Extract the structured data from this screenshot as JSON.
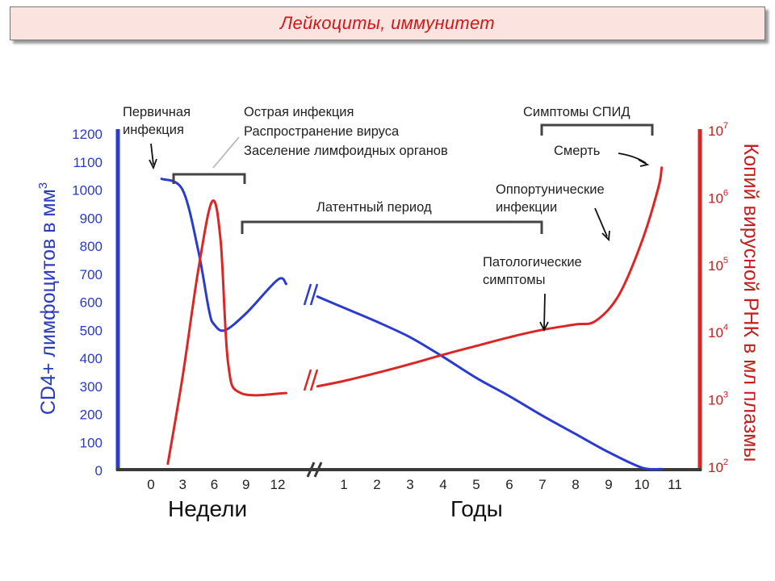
{
  "header": {
    "title": "Лейкоциты, иммунитет"
  },
  "chart_data": {
    "type": "line",
    "ylabel_left": "CD4+ лимфоцитов в мм",
    "ylabel_left_sup": "3",
    "ylabel_right": "Копий вирусной РНК в мл плазмы",
    "ylim_left": [
      0,
      1200
    ],
    "left_ticks": [
      "0",
      "100",
      "200",
      "300",
      "400",
      "500",
      "600",
      "700",
      "800",
      "900",
      "1000",
      "1100",
      "1200"
    ],
    "right_ticks": [
      {
        "base": "10",
        "exp": "2"
      },
      {
        "base": "10",
        "exp": "3"
      },
      {
        "base": "10",
        "exp": "4"
      },
      {
        "base": "10",
        "exp": "5"
      },
      {
        "base": "10",
        "exp": "6"
      },
      {
        "base": "10",
        "exp": "7"
      }
    ],
    "ylim_right_log10": [
      2,
      7
    ],
    "x_weeks_ticks": [
      "0",
      "3",
      "6",
      "9",
      "12"
    ],
    "x_years_ticks": [
      "1",
      "2",
      "3",
      "4",
      "5",
      "6",
      "7",
      "8",
      "9",
      "10",
      "11"
    ],
    "x_weeks_label": "Недели",
    "x_years_label": "Годы",
    "series": [
      {
        "color": "#2a3bd0",
        "axis": "left",
        "weeks": [
          [
            1,
            1040
          ],
          [
            3,
            1000
          ],
          [
            4.5,
            780
          ],
          [
            5.5,
            570
          ],
          [
            6,
            520
          ],
          [
            7,
            500
          ],
          [
            9,
            560
          ],
          [
            12,
            680
          ],
          [
            12.8,
            665
          ]
        ],
        "years": [
          [
            0.2,
            620
          ],
          [
            1,
            580
          ],
          [
            2,
            530
          ],
          [
            3,
            475
          ],
          [
            4,
            405
          ],
          [
            5,
            330
          ],
          [
            6,
            265
          ],
          [
            7,
            195
          ],
          [
            8,
            130
          ],
          [
            9,
            65
          ],
          [
            10,
            10
          ],
          [
            10.6,
            5
          ]
        ]
      },
      {
        "color": "#dc2626",
        "axis": "right",
        "weeks": [
          [
            1.6,
            2.1
          ],
          [
            3,
            3.4
          ],
          [
            4.5,
            5.0
          ],
          [
            5.8,
            6.0
          ],
          [
            6.6,
            5.4
          ],
          [
            7.3,
            3.6
          ],
          [
            8.5,
            3.15
          ],
          [
            12.8,
            3.15
          ]
        ],
        "years": [
          [
            0.2,
            3.25
          ],
          [
            1,
            3.33
          ],
          [
            2,
            3.45
          ],
          [
            3,
            3.58
          ],
          [
            4,
            3.72
          ],
          [
            5,
            3.85
          ],
          [
            6,
            3.98
          ],
          [
            7,
            4.09
          ],
          [
            8,
            4.17
          ],
          [
            8.6,
            4.22
          ],
          [
            9.3,
            4.6
          ],
          [
            10,
            5.4
          ],
          [
            10.5,
            6.2
          ],
          [
            10.6,
            6.5
          ]
        ]
      }
    ],
    "annotations": {
      "primary": [
        "Первичная",
        "инфекция"
      ],
      "acute": [
        "Острая инфекция",
        "Распространение вируса",
        "Заселение лимфоидных органов"
      ],
      "aids": "Симптомы СПИД",
      "death": "Смерть",
      "opportunistic": [
        "Оппортунические",
        "инфекции"
      ],
      "latent": "Латентный период",
      "pathologic": [
        "Патологические",
        "симптомы"
      ]
    }
  }
}
